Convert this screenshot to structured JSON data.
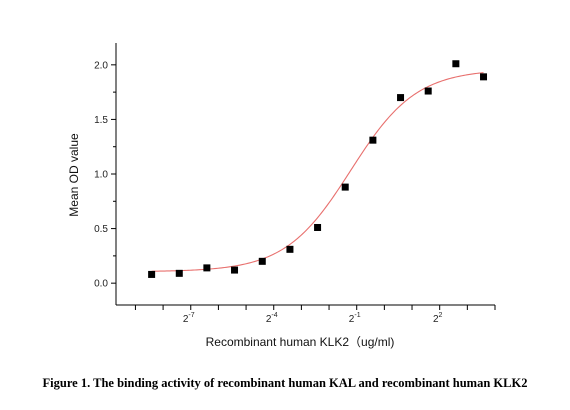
{
  "caption": "Figure 1. The binding activity of recombinant human KAL and recombinant human KLK2",
  "chart_data": {
    "type": "scatter",
    "title": "",
    "xlabel": "Recombinant human  KLK2（ug/ml)",
    "ylabel": "Mean OD value",
    "x_scale": "log2",
    "x_tick_labels": [
      {
        "base": "2",
        "exp": "-7",
        "x": 0.0078125
      },
      {
        "base": "2",
        "exp": "-4",
        "x": 0.0625
      },
      {
        "base": "2",
        "exp": "-1",
        "x": 0.5
      },
      {
        "base": "2",
        "exp": "2",
        "x": 4
      }
    ],
    "y_ticks": [
      {
        "label": "0.0",
        "y": 0.0
      },
      {
        "label": "0.5",
        "y": 0.5
      },
      {
        "label": "1.0",
        "y": 1.0
      },
      {
        "label": "1.5",
        "y": 1.5
      },
      {
        "label": "2.0",
        "y": 2.0
      }
    ],
    "xlim": [
      0.0012,
      16.0
    ],
    "ylim": [
      -0.2,
      2.2
    ],
    "grid": false,
    "series": [
      {
        "type": "scatter",
        "marker": "square",
        "color": "#000000",
        "x": [
          0.00293,
          0.00586,
          0.0117,
          0.0234,
          0.0469,
          0.0938,
          0.1875,
          0.375,
          0.75,
          1.5,
          3.0,
          6.0,
          12.0
        ],
        "y": [
          0.08,
          0.09,
          0.14,
          0.12,
          0.2,
          0.31,
          0.51,
          0.88,
          1.31,
          1.7,
          1.76,
          2.01,
          1.89
        ]
      },
      {
        "type": "line",
        "color": "#e8706e",
        "fit": "4PL",
        "bottom": 0.105,
        "top": 1.96,
        "ec50": 0.43,
        "hill": 1.22,
        "x_range": [
          0.00293,
          12.0
        ]
      }
    ]
  }
}
